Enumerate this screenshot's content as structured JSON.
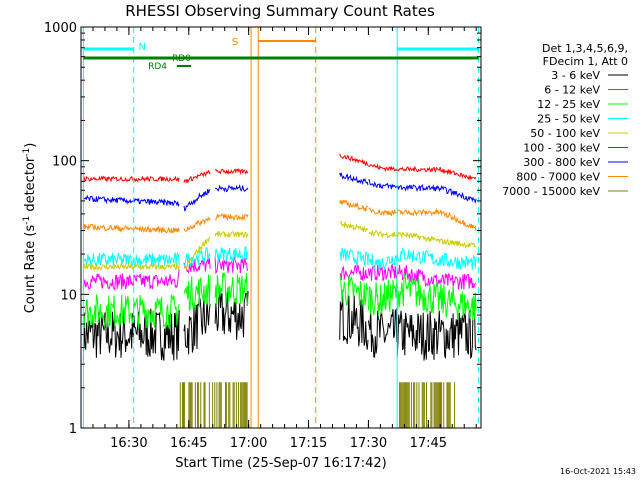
{
  "chart_data": {
    "type": "line",
    "title": "RHESSI Observing Summary Count Rates",
    "xlabel": "Start Time (25-Sep-07 16:17:42)",
    "ylabel_main": "Count Rate (s",
    "ylabel_sup1": "-1",
    "ylabel_mid": " detector",
    "ylabel_sup2": "-1",
    "ylabel_end": ")",
    "yscale": "log",
    "ylim": [
      1,
      1000
    ],
    "xlim_minutes": [
      16.3,
      17.97
    ],
    "x_ticks": [
      {
        "min": 16.5,
        "label": "16:30"
      },
      {
        "min": 16.75,
        "label": "16:45"
      },
      {
        "min": 17.0,
        "label": "17:00"
      },
      {
        "min": 17.25,
        "label": "17:15"
      },
      {
        "min": 17.5,
        "label": "17:30"
      },
      {
        "min": 17.75,
        "label": "17:45"
      }
    ],
    "y_ticks": [
      {
        "value": 1,
        "label": "1"
      },
      {
        "value": 10,
        "label": "10"
      },
      {
        "value": 100,
        "label": "100"
      },
      {
        "value": 1000,
        "label": "1000"
      }
    ],
    "legend_header": [
      "Det 1,3,4,5,6,9,",
      "FDecim 1, Att 0"
    ],
    "series": [
      {
        "name": "3 - 6 keV",
        "color": "#000000",
        "values": [
          5,
          5,
          5,
          7,
          7,
          7,
          5,
          5,
          5,
          5
        ]
      },
      {
        "name": "6 - 12 keV",
        "color": "#ff00ff",
        "values": [
          12.5,
          12.5,
          16.5,
          16.5,
          16.5,
          14.5,
          14.5,
          14.5,
          12.5,
          12.5
        ]
      },
      {
        "name": "12 - 25 keV",
        "color": "#00ff00",
        "values": [
          7.5,
          7.5,
          10,
          11,
          11,
          11,
          9,
          11,
          9,
          8
        ]
      },
      {
        "name": "25 - 50 keV",
        "color": "#00ffff",
        "values": [
          18,
          18,
          18,
          20,
          20,
          20,
          17,
          20,
          18,
          17
        ]
      },
      {
        "name": "50 - 100 keV",
        "color": "#cccc00",
        "values": [
          16,
          16,
          15,
          28,
          28,
          34,
          28,
          28,
          25,
          23
        ]
      },
      {
        "name": "100 - 300 keV",
        "color": "#ff0000",
        "values": [
          73,
          73,
          70,
          83,
          83,
          110,
          88,
          86,
          86,
          72
        ]
      },
      {
        "name": "300 - 800 keV",
        "color": "#0000ff",
        "values": [
          52,
          48,
          44,
          62,
          62,
          78,
          65,
          63,
          62,
          50
        ]
      },
      {
        "name": "800 - 7000 keV",
        "color": "#ff8800",
        "values": [
          32,
          30,
          30,
          38,
          38,
          49,
          41,
          41,
          41,
          31
        ]
      },
      {
        "name": "7000 - 15000 keV",
        "color": "#808000",
        "values": [
          1,
          1,
          2,
          2,
          2,
          1,
          1,
          2,
          1,
          1
        ]
      }
    ],
    "flags": [
      {
        "label": "N",
        "color": "#00ffff"
      },
      {
        "label": "S",
        "color": "#ff8800"
      },
      {
        "label": "RD0",
        "color": "#008000"
      },
      {
        "label": "RD4",
        "color": "#008000"
      }
    ],
    "grid": false
  },
  "footer": {
    "timestamp": "16-Oct-2021 15:43"
  }
}
